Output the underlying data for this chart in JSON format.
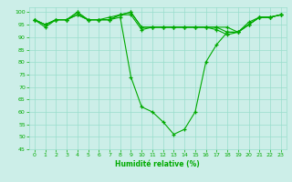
{
  "title": "",
  "xlabel": "Humidité relative (%)",
  "ylabel": "",
  "xlim": [
    -0.5,
    23.5
  ],
  "ylim": [
    45,
    102
  ],
  "yticks": [
    45,
    50,
    55,
    60,
    65,
    70,
    75,
    80,
    85,
    90,
    95,
    100
  ],
  "xticks": [
    0,
    1,
    2,
    3,
    4,
    5,
    6,
    7,
    8,
    9,
    10,
    11,
    12,
    13,
    14,
    15,
    16,
    17,
    18,
    19,
    20,
    21,
    22,
    23
  ],
  "bg_color": "#cceee8",
  "grid_color": "#99ddcc",
  "line_color": "#00aa00",
  "marker": "+",
  "lines": [
    [
      97,
      95,
      97,
      97,
      100,
      97,
      97,
      97,
      99,
      100,
      94,
      94,
      94,
      94,
      94,
      94,
      94,
      94,
      94,
      92,
      96,
      98,
      98,
      99
    ],
    [
      97,
      95,
      97,
      97,
      100,
      97,
      97,
      98,
      99,
      100,
      94,
      94,
      94,
      94,
      94,
      94,
      94,
      94,
      92,
      92,
      95,
      98,
      98,
      99
    ],
    [
      97,
      95,
      97,
      97,
      99,
      97,
      97,
      97,
      99,
      99,
      93,
      94,
      94,
      94,
      94,
      94,
      94,
      93,
      91,
      92,
      95,
      98,
      98,
      99
    ],
    [
      97,
      94,
      97,
      97,
      99,
      97,
      97,
      97,
      98,
      74,
      62,
      60,
      56,
      51,
      53,
      60,
      80,
      87,
      92,
      92,
      95,
      98,
      98,
      99
    ]
  ]
}
